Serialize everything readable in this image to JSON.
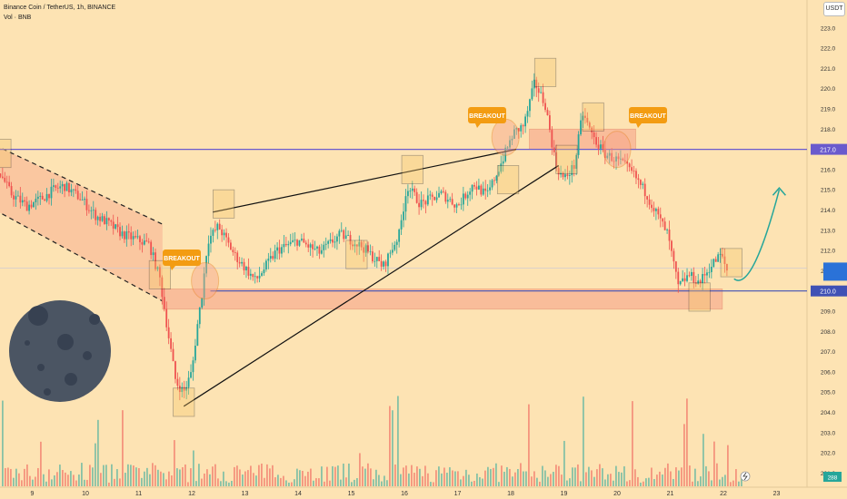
{
  "header": {
    "symbol_line": "Binance Coin / TetherUS, 1h, BINANCE",
    "volume_line": "Vol · BNB",
    "quote_currency": "USDT"
  },
  "price_axis": {
    "ticks": [
      "201.0",
      "202.0",
      "203.0",
      "204.0",
      "205.0",
      "206.0",
      "207.0",
      "208.0",
      "209.0",
      "210.0",
      "211.0",
      "212.0",
      "213.0",
      "214.0",
      "215.0",
      "216.0",
      "217.0",
      "218.0",
      "219.0",
      "220.0",
      "221.0",
      "222.0",
      "223.0"
    ],
    "resistance_label": "217.0",
    "support_label": "210.0",
    "volume_label": "288"
  },
  "time_axis": {
    "ticks": [
      "9",
      "10",
      "11",
      "12",
      "13",
      "14",
      "15",
      "16",
      "17",
      "18",
      "19",
      "20",
      "21",
      "22",
      "23"
    ]
  },
  "annotations": {
    "breakout_labels": [
      "BREAKOUT",
      "BREAKOUT",
      "BREAKOUT"
    ]
  },
  "colors": {
    "background": "#fde3b3",
    "bull": "#26a69a",
    "bear": "#ef5350",
    "resistance_line": "#6a5acd",
    "support_line": "#3f51b5",
    "zone_fill": "#f7a48a",
    "breakout_label_bg": "#f39c12",
    "projection_arrow": "#26a69a",
    "moon": "#4b5563"
  },
  "chart_data": {
    "type": "candlestick",
    "symbol": "Binance Coin / TetherUS",
    "timeframe": "1h",
    "exchange": "BINANCE",
    "x_unit": "day of month",
    "ylim": [
      200.5,
      224
    ],
    "resistance_level": 217.0,
    "support_level": 210.0,
    "support_zone": [
      209.1,
      210.1
    ],
    "resistance_zone": [
      217.0,
      218.0
    ],
    "last_volume": 288,
    "price_path": [
      [
        8.4,
        215.8
      ],
      [
        8.6,
        214.8
      ],
      [
        8.9,
        214.2
      ],
      [
        9.2,
        214.6
      ],
      [
        9.4,
        215.0
      ],
      [
        9.6,
        215.2
      ],
      [
        9.9,
        214.6
      ],
      [
        10.2,
        213.7
      ],
      [
        10.4,
        213.4
      ],
      [
        10.7,
        212.8
      ],
      [
        10.9,
        212.6
      ],
      [
        11.2,
        212.3
      ],
      [
        11.4,
        210.6
      ],
      [
        11.55,
        208.0
      ],
      [
        11.7,
        205.5
      ],
      [
        11.85,
        205.0
      ],
      [
        12.0,
        206.0
      ],
      [
        12.1,
        208.2
      ],
      [
        12.2,
        210.0
      ],
      [
        12.3,
        212.5
      ],
      [
        12.5,
        213.2
      ],
      [
        12.8,
        211.8
      ],
      [
        13.2,
        210.5
      ],
      [
        13.6,
        212.0
      ],
      [
        14.0,
        212.5
      ],
      [
        14.4,
        211.9
      ],
      [
        14.8,
        212.8
      ],
      [
        15.2,
        212.2
      ],
      [
        15.6,
        211.2
      ],
      [
        15.9,
        212.8
      ],
      [
        16.05,
        215.2
      ],
      [
        16.3,
        214.3
      ],
      [
        16.7,
        214.8
      ],
      [
        17.0,
        214.2
      ],
      [
        17.3,
        215.3
      ],
      [
        17.55,
        214.7
      ],
      [
        17.8,
        216.2
      ],
      [
        18.05,
        217.8
      ],
      [
        18.25,
        218.2
      ],
      [
        18.45,
        220.3
      ],
      [
        18.65,
        219.2
      ],
      [
        18.85,
        216.2
      ],
      [
        19.0,
        215.5
      ],
      [
        19.2,
        216.2
      ],
      [
        19.35,
        218.8
      ],
      [
        19.55,
        217.6
      ],
      [
        19.75,
        216.8
      ],
      [
        20.05,
        216.4
      ],
      [
        20.3,
        215.8
      ],
      [
        20.55,
        214.8
      ],
      [
        20.75,
        213.8
      ],
      [
        20.95,
        212.8
      ],
      [
        21.15,
        210.2
      ],
      [
        21.35,
        210.8
      ],
      [
        21.55,
        210.4
      ],
      [
        21.75,
        211.2
      ],
      [
        21.95,
        211.8
      ],
      [
        22.1,
        210.8
      ]
    ],
    "projection": [
      [
        22.2,
        210.6
      ],
      [
        22.45,
        210.1
      ],
      [
        22.75,
        212.0
      ],
      [
        23.05,
        215.0
      ]
    ]
  }
}
